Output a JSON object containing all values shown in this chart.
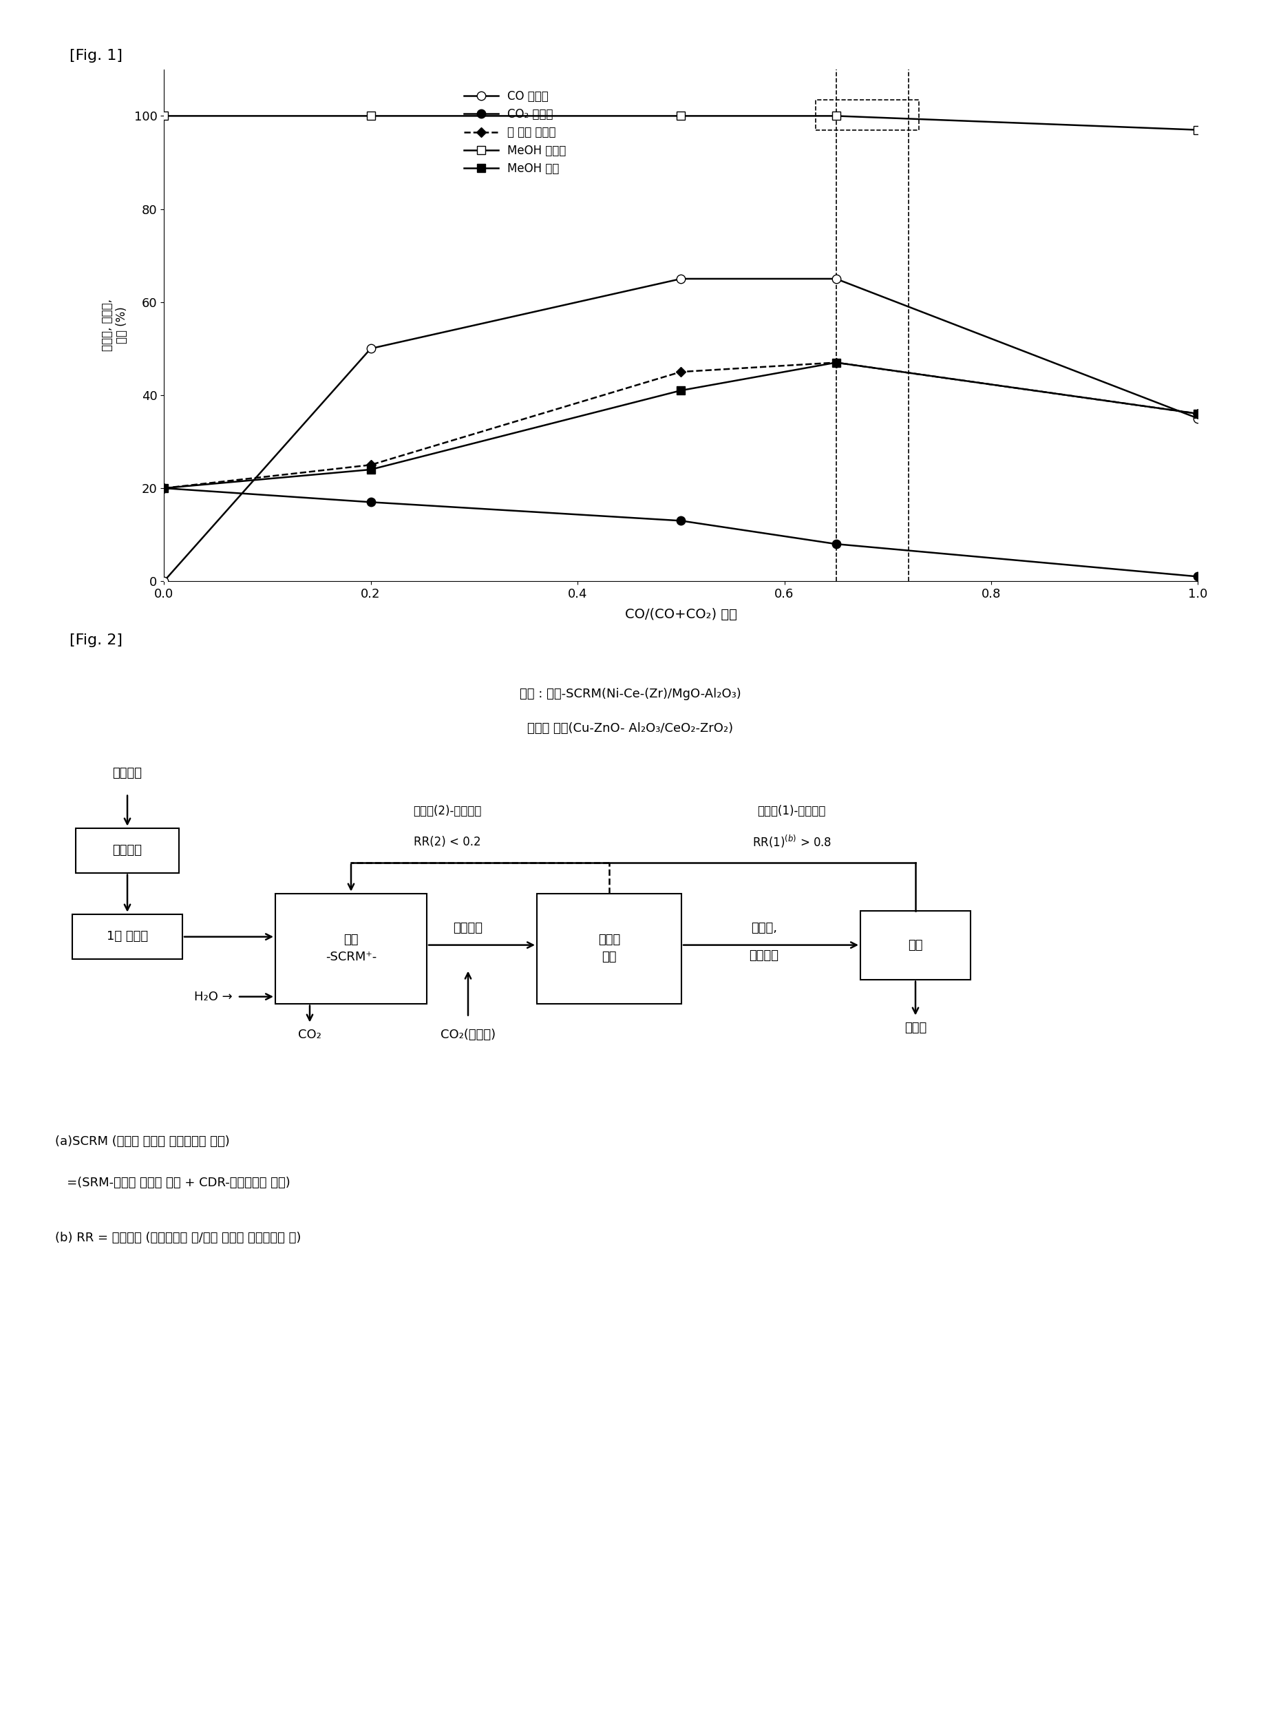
{
  "fig1_label": "[Fig. 1]",
  "fig2_label": "[Fig. 2]",
  "xlabel": "CO/(CO+CO₂) 모비",
  "ylabel_line1": "선택성, 전환율,",
  "ylabel_line2": "수율 (%)",
  "x": [
    0.0,
    0.2,
    0.5,
    0.65,
    1.0
  ],
  "co_conversion": [
    0.0,
    50.0,
    65.0,
    65.0,
    35.0
  ],
  "co2_conversion": [
    20.0,
    17.0,
    13.0,
    8.0,
    1.0
  ],
  "total_carbon": [
    20.0,
    25.0,
    45.0,
    47.0,
    36.0
  ],
  "meoh_selectivity": [
    100.0,
    100.0,
    100.0,
    100.0,
    97.0
  ],
  "meoh_yield": [
    20.0,
    24.0,
    41.0,
    47.0,
    36.0
  ],
  "xlim": [
    0.0,
    1.0
  ],
  "ylim": [
    0,
    110
  ],
  "yticks": [
    0,
    20,
    40,
    60,
    80,
    100
  ],
  "xticks": [
    0.0,
    0.2,
    0.4,
    0.6,
    0.8,
    1.0
  ],
  "legend_co": "CO 전환율",
  "legend_co2": "CO₂ 전환율",
  "legend_total": "성 탄소 전환율",
  "legend_meoh_sel": "MeOH 선택성",
  "legend_meoh_yield": "MeOH 수율",
  "catalyst_text1": "촉매 : 개질-SCRM(Ni-Ce-(Zr)/MgO-Al₂O₃)",
  "catalyst_text2": "메탄올 합성(Cu-ZnO- Al₂O₃/CeO₂-ZrO₂)",
  "box_sulphur": "탈황장치",
  "box_reformer1": "1차 개질기",
  "box_scrm": "개질\n-SCRM⁺-",
  "box_meoh_syn": "메탄올\n합성",
  "box_sep": "분리",
  "label_natural_gas": "천연가스",
  "label_h2o": "H₂O",
  "label_co2_in": "CO₂",
  "label_syngas": "합성가스",
  "label_co2_opt": "CO₂(선택적)",
  "label_meoh_syngas": "메탄올,\n합성가스",
  "label_meoh_out": "메탄올",
  "label_recycle1": "재순환(1)-합성가스",
  "label_recycle1b": "RR(1)$^{(b)}$ > 0.8",
  "label_recycle2": "재순환(2)-합성가스",
  "label_recycle2b": "RR(2) < 0.2",
  "note_a": "(a)SCRM (메탄의 수증기 이산화탄소 개질)",
  "note_a2": "   =(SRM-메탄의 수증기 개질 + CDR-이산화탄소 개질)",
  "note_b": "(b) RR = 재순환비 (재순환되는 양/전체 미반응 합성가스의 양)"
}
